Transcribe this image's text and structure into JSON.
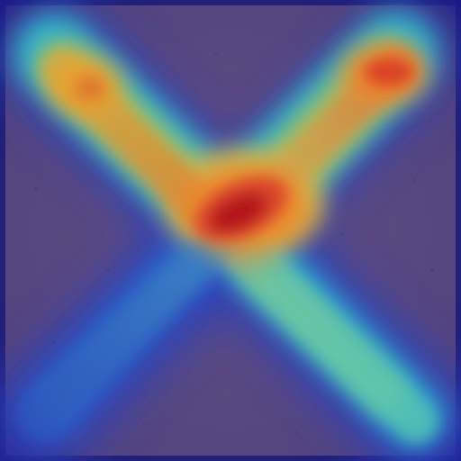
{
  "image": {
    "subject": "heatmap-overlay-on-x-mark",
    "colors": {
      "frame": "#1b1a78",
      "base": "#5e4c82",
      "cold": "#2a3fb6",
      "cool": "#2fc6d2",
      "mid": "#8fd06a",
      "warm": "#f2b03c",
      "hot": "#e2552a",
      "peak": "#b3141e"
    },
    "heat_levels": {
      "crossing": 1.0,
      "upper_right_end": 0.85,
      "upper_left_end": 0.7,
      "lower_right_arm": 0.35,
      "lower_left_arm": 0.15
    }
  }
}
